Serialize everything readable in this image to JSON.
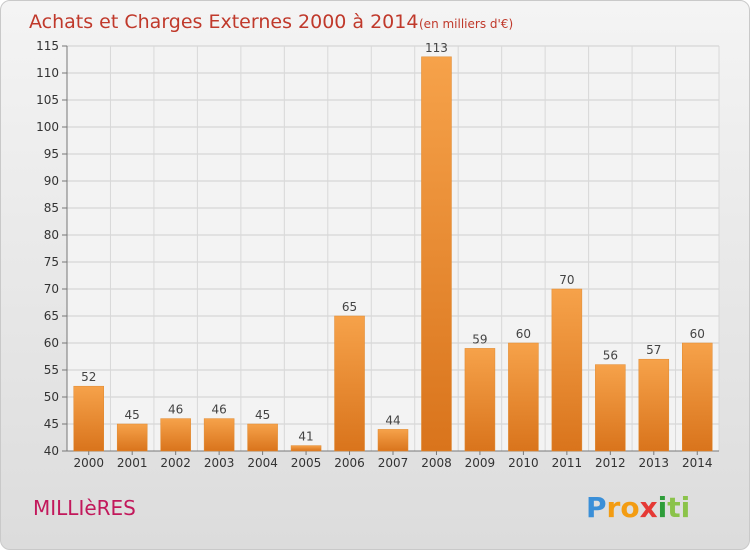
{
  "chart_data": {
    "type": "bar",
    "title": "Achats et Charges Externes 2000 à 2014",
    "subtitle": "(en milliers d'€)",
    "categories": [
      "2000",
      "2001",
      "2002",
      "2003",
      "2004",
      "2005",
      "2006",
      "2007",
      "2008",
      "2009",
      "2010",
      "2011",
      "2012",
      "2013",
      "2014"
    ],
    "values": [
      52,
      45,
      46,
      46,
      45,
      41,
      65,
      44,
      113,
      59,
      60,
      70,
      56,
      57,
      60
    ],
    "ylim": [
      40,
      115
    ],
    "yticks": [
      40,
      45,
      50,
      55,
      60,
      65,
      70,
      75,
      80,
      85,
      90,
      95,
      100,
      105,
      110,
      115
    ],
    "grid": true,
    "legend": "none",
    "bar_color": "#f0922e"
  },
  "location_label": "MILLIèRES",
  "brand": {
    "letters": [
      "P",
      "r",
      "o",
      "x",
      "i",
      "t",
      "i"
    ],
    "colors": [
      "#3a8fd8",
      "#f39c12",
      "#f39c12",
      "#e53935",
      "#2e9d3a",
      "#8bc34a",
      "#8bc34a"
    ]
  }
}
